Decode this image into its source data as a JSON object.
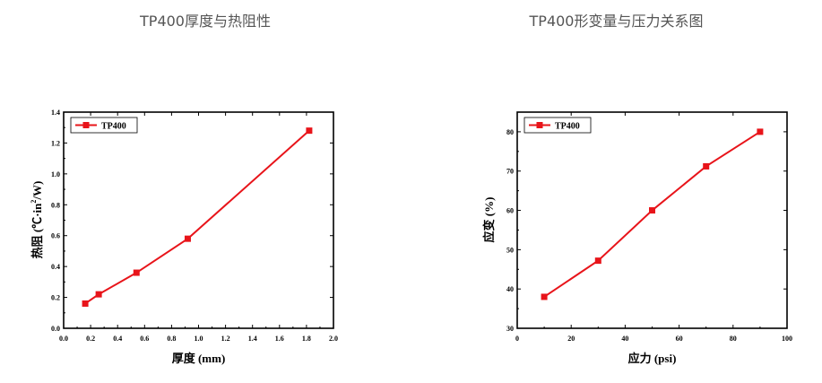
{
  "captions": [
    "TP400厚度与热阻性",
    "TP400形变量与压力关系图"
  ],
  "chart_data": [
    {
      "type": "line",
      "title": "",
      "xlabel": "厚度 (mm)",
      "ylabel_parts": [
        "热阻 (℃·in",
        "2",
        "/W)"
      ],
      "xlim": [
        0.0,
        2.0
      ],
      "ylim": [
        0.0,
        1.4
      ],
      "xticks": [
        "0.0",
        "0.2",
        "0.4",
        "0.6",
        "0.8",
        "1.0",
        "1.2",
        "1.4",
        "1.6",
        "1.8",
        "2.0"
      ],
      "yticks": [
        "0.0",
        "0.2",
        "0.4",
        "0.6",
        "0.8",
        "1.0",
        "1.2",
        "1.4"
      ],
      "series": [
        {
          "name": "TP400",
          "color": "#e8141a",
          "x": [
            0.16,
            0.26,
            0.54,
            0.92,
            1.82
          ],
          "y": [
            0.16,
            0.22,
            0.36,
            0.58,
            1.28
          ]
        }
      ],
      "legend": "top-left",
      "grid": false
    },
    {
      "type": "line",
      "title": "",
      "xlabel": "应力 (psi)",
      "ylabel_parts": [
        "应变 (%)"
      ],
      "xlim": [
        0,
        100
      ],
      "ylim": [
        30,
        85
      ],
      "xticks": [
        "0",
        "20",
        "40",
        "60",
        "80",
        "100"
      ],
      "yticks": [
        "30",
        "40",
        "50",
        "60",
        "70",
        "80"
      ],
      "series": [
        {
          "name": "TP400",
          "color": "#e8141a",
          "x": [
            10,
            30,
            50,
            70,
            90
          ],
          "y": [
            38,
            47.2,
            60,
            71.2,
            80
          ]
        }
      ],
      "legend": "top-left",
      "grid": false
    }
  ]
}
